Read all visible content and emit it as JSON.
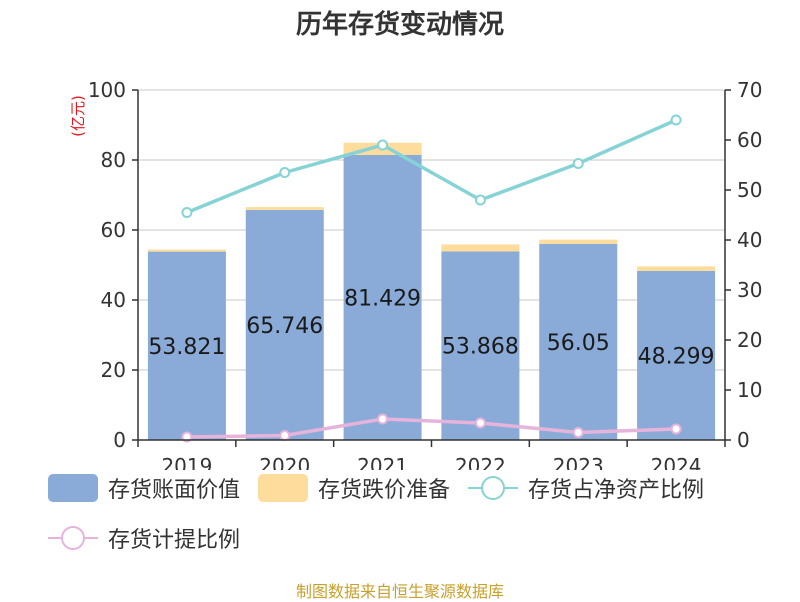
{
  "title": "历年存货变动情况",
  "left_unit": "(亿元)",
  "source": "制图数据来自恒生聚源数据库",
  "colors": {
    "book_value": "#8aabd8",
    "provision": "#fedc9b",
    "ratio_line": "#86d3d6",
    "provision_ratio_line": "#e6b3db",
    "unit_red": "#e3191e"
  },
  "legend": [
    {
      "label": "存货账面价值",
      "kind": "bar",
      "color": "#8aabd8"
    },
    {
      "label": "存货跌价准备",
      "kind": "bar",
      "color": "#fedc9b"
    },
    {
      "label": "存货占净资产比例",
      "kind": "line",
      "color": "#86d3d6"
    },
    {
      "label": "存货计提比例",
      "kind": "line",
      "color": "#e6b3db"
    }
  ],
  "chart_data": {
    "type": "bar",
    "categories": [
      "2019",
      "2020",
      "2021",
      "2022",
      "2023",
      "2024"
    ],
    "series": [
      {
        "name": "存货账面价值",
        "type": "bar",
        "axis": "left",
        "stack": "a",
        "values": [
          53.821,
          65.746,
          81.429,
          53.868,
          56.05,
          48.299
        ],
        "data_labels": [
          "53.821",
          "65.746",
          "81.429",
          "53.868",
          "56.05",
          "48.299"
        ]
      },
      {
        "name": "存货跌价准备",
        "type": "bar",
        "axis": "left",
        "stack": "a",
        "values": [
          0.6,
          0.8,
          3.5,
          2.0,
          1.2,
          1.3
        ]
      },
      {
        "name": "存货占净资产比例",
        "type": "line",
        "axis": "right",
        "values": [
          45.5,
          53.5,
          59.0,
          48.0,
          55.3,
          64.0
        ]
      },
      {
        "name": "存货计提比例",
        "type": "line",
        "axis": "right",
        "values": [
          0.6,
          0.9,
          4.2,
          3.4,
          1.5,
          2.2
        ]
      }
    ],
    "y_left": {
      "min": 0,
      "max": 100,
      "ticks": [
        0,
        20,
        40,
        60,
        80,
        100
      ]
    },
    "y_right": {
      "min": 0,
      "max": 70,
      "ticks": [
        0,
        10,
        20,
        30,
        40,
        50,
        60,
        70
      ]
    },
    "grid": true,
    "legend_position": "bottom"
  }
}
